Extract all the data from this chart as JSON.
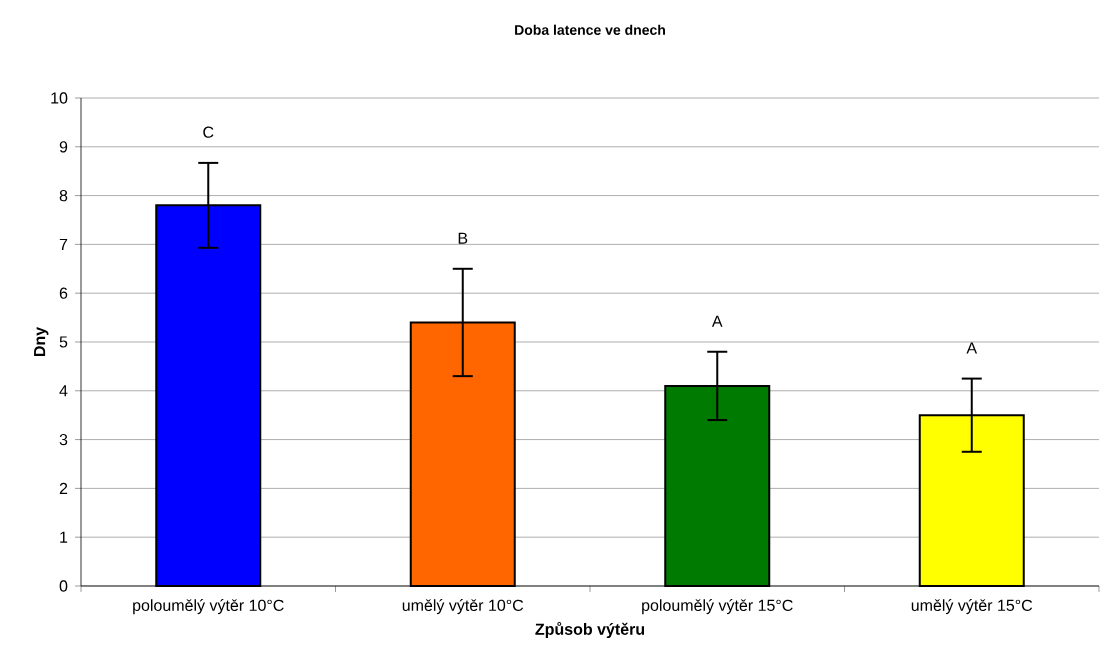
{
  "chart_data": {
    "type": "bar",
    "title": "Doba latence ve dnech",
    "xlabel": "Způsob výtěru",
    "ylabel": "Dny",
    "categories": [
      "poloumělý výtěr 10°C",
      "umělý výtěr 10°C",
      "poloumělý výtěr 15°C",
      "umělý výtěr 15°C"
    ],
    "values": [
      7.8,
      5.4,
      4.1,
      3.5
    ],
    "colors": [
      "#0000ff",
      "#ff6600",
      "#007a00",
      "#ffff00"
    ],
    "errors": [
      0.87,
      1.1,
      0.7,
      0.75
    ],
    "ylim": [
      0,
      10
    ],
    "yticks": [
      0,
      1,
      2,
      3,
      4,
      5,
      6,
      7,
      8,
      9,
      10
    ],
    "grid": "y",
    "annotations": [
      "C",
      "B",
      "A",
      "A"
    ]
  }
}
